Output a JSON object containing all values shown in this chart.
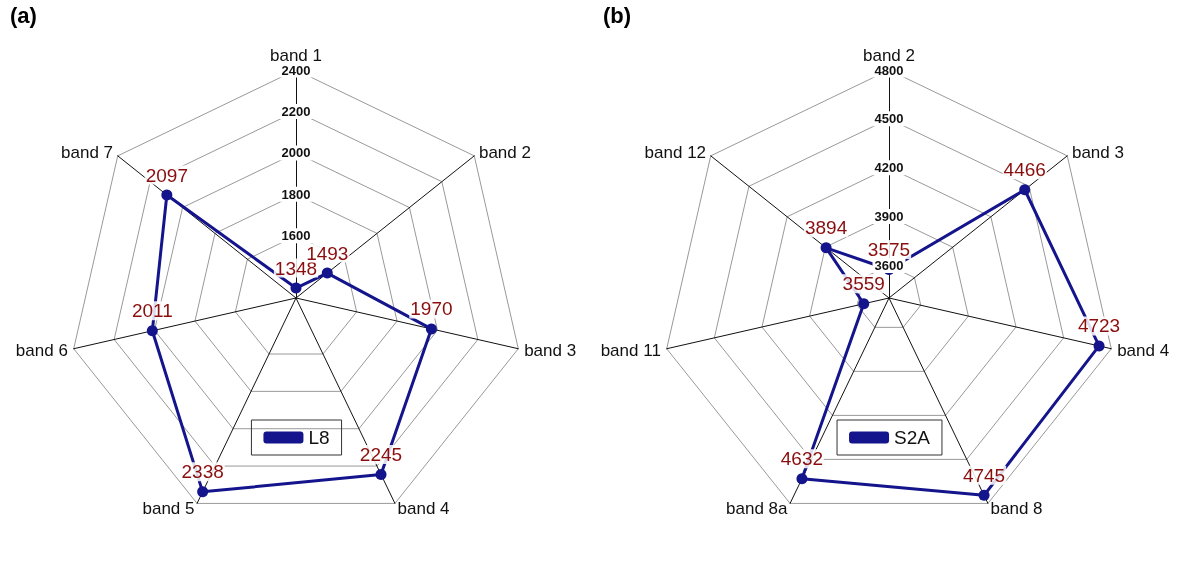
{
  "chart_data": [
    {
      "type": "radar",
      "title": "(a)",
      "categories": [
        "band 1",
        "band 2",
        "band 3",
        "band 4",
        "band 5",
        "band 6",
        "band 7"
      ],
      "series": [
        {
          "name": "L8",
          "color": "#14148c",
          "values": [
            1348,
            1493,
            1970,
            2245,
            2338,
            2011,
            2097
          ]
        }
      ],
      "ylim": [
        1300,
        2400
      ],
      "yticks": [
        1600,
        1800,
        2000,
        2200,
        2400
      ],
      "grid": true,
      "data_labels": true,
      "marker": "circle",
      "legend": "bottom"
    },
    {
      "type": "radar",
      "title": "(b)",
      "categories": [
        "band 2",
        "band 3",
        "band 4",
        "band 8",
        "band 8a",
        "band 11",
        "band 12"
      ],
      "series": [
        {
          "name": "S2A",
          "color": "#14148c",
          "values": [
            3575,
            4466,
            4723,
            4745,
            4632,
            3559,
            3894
          ]
        }
      ],
      "ylim": [
        3400,
        4800
      ],
      "yticks": [
        3600,
        3900,
        4200,
        4500,
        4800
      ],
      "grid": true,
      "data_labels": true,
      "marker": "circle",
      "legend": "bottom"
    }
  ]
}
